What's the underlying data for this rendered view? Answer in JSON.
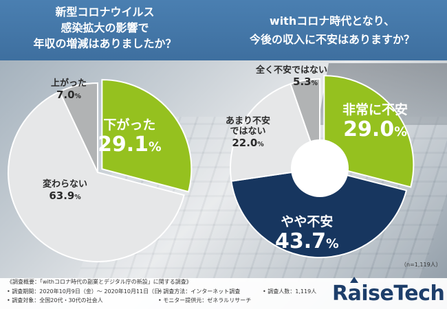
{
  "left_title": [
    "新型コロナウイルス",
    "感染拡大の影響で",
    "年収の増減はありましたか？"
  ],
  "right_title": [
    "withコロナ時代となり、",
    "今後の収入に不安はありますか？"
  ],
  "chart_data": [
    {
      "type": "pie",
      "title": "新型コロナウイルス 感染拡大の影響で 年収の増減はありましたか？",
      "slices": [
        {
          "label": "下がった",
          "value": 29.1,
          "display": "29.1%",
          "color": "#95c11f"
        },
        {
          "label": "変わらない",
          "value": 63.9,
          "display": "63.9%",
          "color": "#e6e7e8"
        },
        {
          "label": "上がった",
          "value": 7.0,
          "display": "7.0%",
          "color": "#b1b3b4"
        }
      ]
    },
    {
      "type": "pie",
      "donut": true,
      "title": "withコロナ時代となり、今後の収入に不安はありますか？",
      "slices": [
        {
          "label": "非常に不安",
          "value": 29.0,
          "display": "29.0%",
          "color": "#95c11f"
        },
        {
          "label": "やや不安",
          "value": 43.7,
          "display": "43.7%",
          "color": "#17365f"
        },
        {
          "label": "あまり不安ではない",
          "value": 22.0,
          "display": "22.0%",
          "color": "#e6e7e8"
        },
        {
          "label": "全く不安ではない",
          "value": 5.3,
          "display": "5.3%",
          "color": "#b1b3b4"
        }
      ]
    }
  ],
  "labels": {
    "l_down_name": "下がった",
    "l_down_pct": "29.1",
    "l_up_name": "上がった",
    "l_up_pct": "7.0",
    "l_same_name": "変わらない",
    "l_same_pct": "63.9",
    "r_very_name": "非常に不安",
    "r_very_pct": "29.0",
    "r_some_name": "やや不安",
    "r_some_pct": "43.7",
    "r_not_line1": "あまり不安",
    "r_not_line2": "ではない",
    "r_not_pct": "22.0",
    "r_none_name": "全く不安ではない",
    "r_none_pct": "5.3",
    "pct_sign": "%"
  },
  "sample_size": "（n=1,119人）",
  "footer": {
    "heading": "《調査概要：「withコロナ時代の副業とデジタル庁の新設」に関する調査》",
    "period": "• 調査期間：2020年10月9日（金）～ 2020年10月11日（日）",
    "target": "• 調査対象：全国20代・30代の社会人",
    "method": "• 調査方法：インターネット調査",
    "provider": "• モニター提供元：ゼネラルリサーチ",
    "count": "• 調査人数：1,119人"
  },
  "logo": "RaiseTech",
  "colors": {
    "green": "#95c11f",
    "navy": "#17365f",
    "light_gray": "#e6e7e8",
    "mid_gray": "#b1b3b4",
    "title_blue": "#3e6f9f"
  }
}
